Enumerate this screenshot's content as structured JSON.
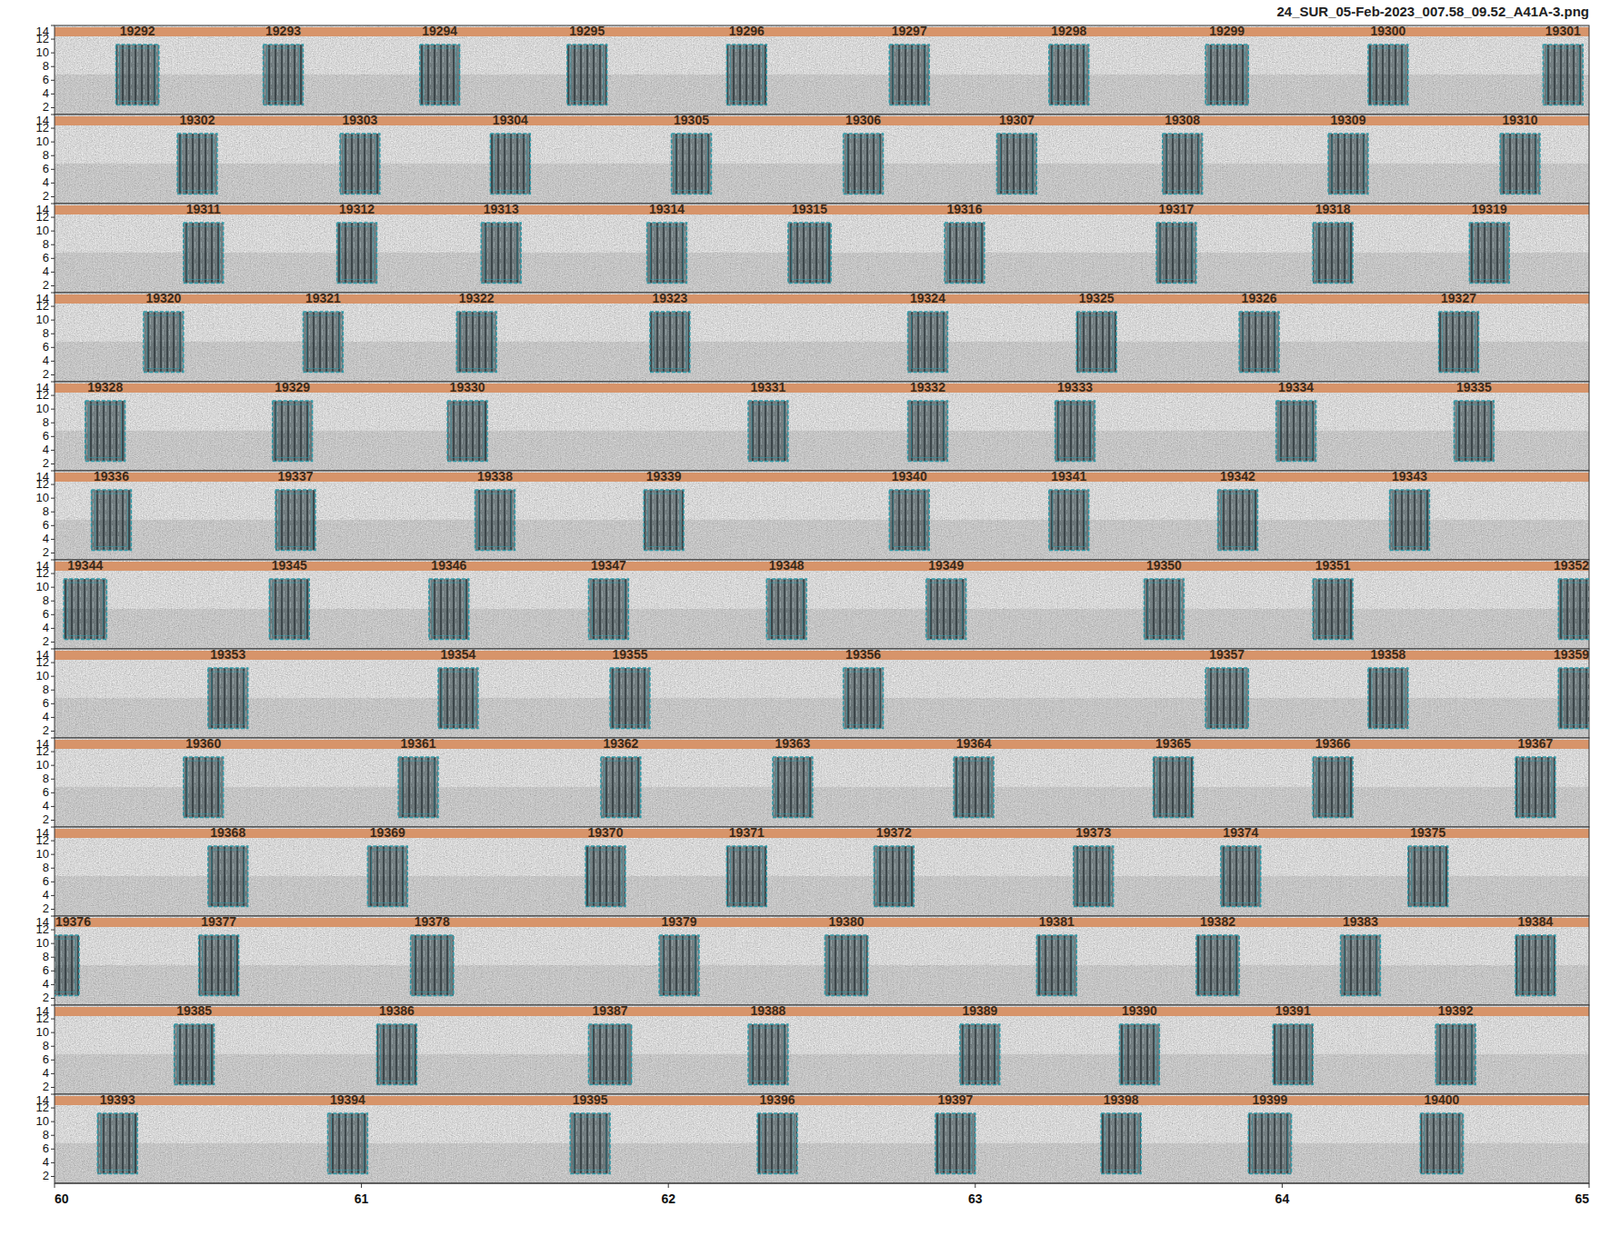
{
  "chart_data": {
    "type": "spectrogram",
    "title": "24_SUR_05-Feb-2023_007.58_09.52_A41A-3.png",
    "xlim": [
      60,
      65
    ],
    "xticks": [
      60,
      61,
      62,
      63,
      64,
      65
    ],
    "ylim": [
      1,
      14
    ],
    "yticks": [
      2,
      4,
      6,
      8,
      10,
      12,
      14
    ],
    "box_freq": [
      2.4,
      11.2
    ],
    "panels": [
      {
        "detections": [
          {
            "label": "19292",
            "start": 60.2,
            "end": 60.34
          },
          {
            "label": "19293",
            "start": 60.68,
            "end": 60.81
          },
          {
            "label": "19294",
            "start": 61.19,
            "end": 61.32
          },
          {
            "label": "19295",
            "start": 61.67,
            "end": 61.8
          },
          {
            "label": "19296",
            "start": 62.19,
            "end": 62.32
          },
          {
            "label": "19297",
            "start": 62.72,
            "end": 62.85
          },
          {
            "label": "19298",
            "start": 63.24,
            "end": 63.37
          },
          {
            "label": "19299",
            "start": 63.75,
            "end": 63.89
          },
          {
            "label": "19300",
            "start": 64.28,
            "end": 64.41
          },
          {
            "label": "19301",
            "start": 64.85,
            "end": 64.98
          }
        ]
      },
      {
        "detections": [
          {
            "label": "19302",
            "start": 60.4,
            "end": 60.53
          },
          {
            "label": "19303",
            "start": 60.93,
            "end": 61.06
          },
          {
            "label": "19304",
            "start": 61.42,
            "end": 61.55
          },
          {
            "label": "19305",
            "start": 62.01,
            "end": 62.14
          },
          {
            "label": "19306",
            "start": 62.57,
            "end": 62.7
          },
          {
            "label": "19307",
            "start": 63.07,
            "end": 63.2
          },
          {
            "label": "19308",
            "start": 63.61,
            "end": 63.74
          },
          {
            "label": "19309",
            "start": 64.15,
            "end": 64.28
          },
          {
            "label": "19310",
            "start": 64.71,
            "end": 64.84
          }
        ]
      },
      {
        "detections": [
          {
            "label": "19311",
            "start": 60.42,
            "end": 60.55
          },
          {
            "label": "19312",
            "start": 60.92,
            "end": 61.05
          },
          {
            "label": "19313",
            "start": 61.39,
            "end": 61.52
          },
          {
            "label": "19314",
            "start": 61.93,
            "end": 62.06
          },
          {
            "label": "19315",
            "start": 62.39,
            "end": 62.53
          },
          {
            "label": "19316",
            "start": 62.9,
            "end": 63.03
          },
          {
            "label": "19317",
            "start": 63.59,
            "end": 63.72
          },
          {
            "label": "19318",
            "start": 64.1,
            "end": 64.23
          },
          {
            "label": "19319",
            "start": 64.61,
            "end": 64.74
          }
        ]
      },
      {
        "detections": [
          {
            "label": "19320",
            "start": 60.29,
            "end": 60.42
          },
          {
            "label": "19321",
            "start": 60.81,
            "end": 60.94
          },
          {
            "label": "19322",
            "start": 61.31,
            "end": 61.44
          },
          {
            "label": "19323",
            "start": 61.94,
            "end": 62.07
          },
          {
            "label": "19324",
            "start": 62.78,
            "end": 62.91
          },
          {
            "label": "19325",
            "start": 63.33,
            "end": 63.46
          },
          {
            "label": "19326",
            "start": 63.86,
            "end": 63.99
          },
          {
            "label": "19327",
            "start": 64.51,
            "end": 64.64
          }
        ]
      },
      {
        "detections": [
          {
            "label": "19328",
            "start": 60.1,
            "end": 60.23
          },
          {
            "label": "19329",
            "start": 60.71,
            "end": 60.84
          },
          {
            "label": "19330",
            "start": 61.28,
            "end": 61.41
          },
          {
            "label": "19331",
            "start": 62.26,
            "end": 62.39
          },
          {
            "label": "19332",
            "start": 62.78,
            "end": 62.91
          },
          {
            "label": "19333",
            "start": 63.26,
            "end": 63.39
          },
          {
            "label": "19334",
            "start": 63.98,
            "end": 64.11
          },
          {
            "label": "19335",
            "start": 64.56,
            "end": 64.69
          }
        ]
      },
      {
        "detections": [
          {
            "label": "19336",
            "start": 60.12,
            "end": 60.25
          },
          {
            "label": "19337",
            "start": 60.72,
            "end": 60.85
          },
          {
            "label": "19338",
            "start": 61.37,
            "end": 61.5
          },
          {
            "label": "19339",
            "start": 61.92,
            "end": 62.05
          },
          {
            "label": "19340",
            "start": 62.72,
            "end": 62.85
          },
          {
            "label": "19341",
            "start": 63.24,
            "end": 63.37
          },
          {
            "label": "19342",
            "start": 63.79,
            "end": 63.92
          },
          {
            "label": "19343",
            "start": 64.35,
            "end": 64.48
          }
        ]
      },
      {
        "detections": [
          {
            "label": "19344",
            "start": 60.03,
            "end": 60.17
          },
          {
            "label": "19345",
            "start": 60.7,
            "end": 60.83
          },
          {
            "label": "19346",
            "start": 61.22,
            "end": 61.35
          },
          {
            "label": "19347",
            "start": 61.74,
            "end": 61.87
          },
          {
            "label": "19348",
            "start": 62.32,
            "end": 62.45
          },
          {
            "label": "19349",
            "start": 62.84,
            "end": 62.97
          },
          {
            "label": "19350",
            "start": 63.55,
            "end": 63.68
          },
          {
            "label": "19351",
            "start": 64.1,
            "end": 64.23
          },
          {
            "label": "19352",
            "start": 64.9,
            "end": 65.03
          }
        ]
      },
      {
        "detections": [
          {
            "label": "19353",
            "start": 60.5,
            "end": 60.63
          },
          {
            "label": "19354",
            "start": 61.25,
            "end": 61.38
          },
          {
            "label": "19355",
            "start": 61.81,
            "end": 61.94
          },
          {
            "label": "19356",
            "start": 62.57,
            "end": 62.7
          },
          {
            "label": "19357",
            "start": 63.75,
            "end": 63.89
          },
          {
            "label": "19358",
            "start": 64.28,
            "end": 64.41
          },
          {
            "label": "19359",
            "start": 64.9,
            "end": 65.03
          }
        ]
      },
      {
        "detections": [
          {
            "label": "19360",
            "start": 60.42,
            "end": 60.55
          },
          {
            "label": "19361",
            "start": 61.12,
            "end": 61.25
          },
          {
            "label": "19362",
            "start": 61.78,
            "end": 61.91
          },
          {
            "label": "19363",
            "start": 62.34,
            "end": 62.47
          },
          {
            "label": "19364",
            "start": 62.93,
            "end": 63.06
          },
          {
            "label": "19365",
            "start": 63.58,
            "end": 63.71
          },
          {
            "label": "19366",
            "start": 64.1,
            "end": 64.23
          },
          {
            "label": "19367",
            "start": 64.76,
            "end": 64.89
          }
        ]
      },
      {
        "detections": [
          {
            "label": "19368",
            "start": 60.5,
            "end": 60.63
          },
          {
            "label": "19369",
            "start": 61.02,
            "end": 61.15
          },
          {
            "label": "19370",
            "start": 61.73,
            "end": 61.86
          },
          {
            "label": "19371",
            "start": 62.19,
            "end": 62.32
          },
          {
            "label": "19372",
            "start": 62.67,
            "end": 62.8
          },
          {
            "label": "19373",
            "start": 63.32,
            "end": 63.45
          },
          {
            "label": "19374",
            "start": 63.8,
            "end": 63.93
          },
          {
            "label": "19375",
            "start": 64.41,
            "end": 64.54
          }
        ]
      },
      {
        "detections": [
          {
            "label": "19376",
            "start": 59.96,
            "end": 60.08
          },
          {
            "label": "19377",
            "start": 60.47,
            "end": 60.6
          },
          {
            "label": "19378",
            "start": 61.16,
            "end": 61.3
          },
          {
            "label": "19379",
            "start": 61.97,
            "end": 62.1
          },
          {
            "label": "19380",
            "start": 62.51,
            "end": 62.65
          },
          {
            "label": "19381",
            "start": 63.2,
            "end": 63.33
          },
          {
            "label": "19382",
            "start": 63.72,
            "end": 63.86
          },
          {
            "label": "19383",
            "start": 64.19,
            "end": 64.32
          },
          {
            "label": "19384",
            "start": 64.76,
            "end": 64.89
          }
        ]
      },
      {
        "detections": [
          {
            "label": "19385",
            "start": 60.39,
            "end": 60.52
          },
          {
            "label": "19386",
            "start": 61.05,
            "end": 61.18
          },
          {
            "label": "19387",
            "start": 61.74,
            "end": 61.88
          },
          {
            "label": "19388",
            "start": 62.26,
            "end": 62.39
          },
          {
            "label": "19389",
            "start": 62.95,
            "end": 63.08
          },
          {
            "label": "19390",
            "start": 63.47,
            "end": 63.6
          },
          {
            "label": "19391",
            "start": 63.97,
            "end": 64.1
          },
          {
            "label": "19392",
            "start": 64.5,
            "end": 64.63
          }
        ]
      },
      {
        "detections": [
          {
            "label": "19393",
            "start": 60.14,
            "end": 60.27
          },
          {
            "label": "19394",
            "start": 60.89,
            "end": 61.02
          },
          {
            "label": "19395",
            "start": 61.68,
            "end": 61.81
          },
          {
            "label": "19396",
            "start": 62.29,
            "end": 62.42
          },
          {
            "label": "19397",
            "start": 62.87,
            "end": 63.0
          },
          {
            "label": "19398",
            "start": 63.41,
            "end": 63.54
          },
          {
            "label": "19399",
            "start": 63.89,
            "end": 64.03
          },
          {
            "label": "19400",
            "start": 64.45,
            "end": 64.59
          }
        ]
      }
    ]
  }
}
